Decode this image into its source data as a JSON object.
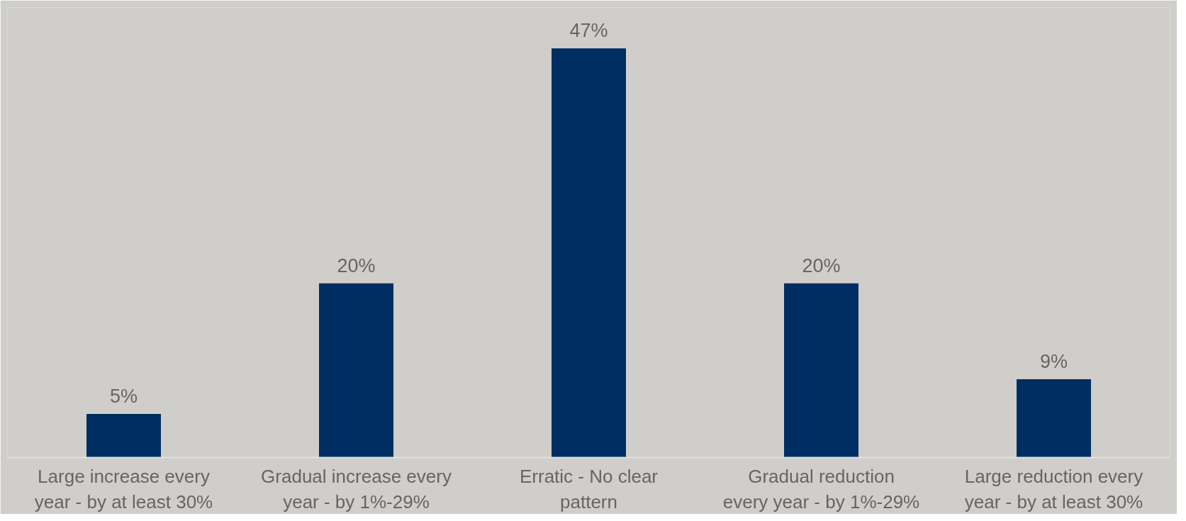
{
  "chart_data": {
    "type": "bar",
    "categories": [
      "Large increase every year - by at least 30%",
      "Gradual increase every year - by 1%-29%",
      "Erratic - No clear pattern",
      "Gradual reduction every year - by 1%-29%",
      "Large reduction every year - by at least 30%"
    ],
    "values": [
      5,
      20,
      47,
      20,
      9
    ],
    "value_labels": [
      "5%",
      "20%",
      "47%",
      "20%",
      "9%"
    ],
    "color": "#002d62",
    "grid": false
  }
}
